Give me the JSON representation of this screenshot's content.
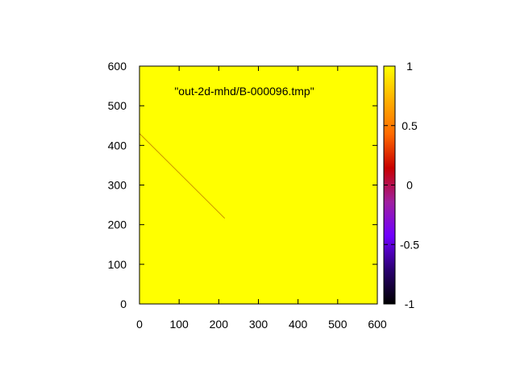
{
  "chart_data": {
    "type": "heatmap",
    "legend_label": "\"out-2d-mhd/B-000096.tmp\"",
    "xlim": [
      0,
      600
    ],
    "ylim": [
      0,
      600
    ],
    "xticks": [
      "0",
      "100",
      "200",
      "300",
      "400",
      "500",
      "600"
    ],
    "yticks": [
      "0",
      "100",
      "200",
      "300",
      "400",
      "500",
      "600"
    ],
    "background_value": 1,
    "background_color": "#ffff00",
    "features": [
      {
        "kind": "line",
        "from": [
          0,
          430
        ],
        "to": [
          215,
          216
        ],
        "value": 0.85
      }
    ],
    "colorbar": {
      "range": [
        -1,
        1
      ],
      "ticks": [
        "1",
        "0.5",
        "0",
        "-0.5",
        "-1"
      ],
      "tick_values": [
        1,
        0.5,
        0,
        -0.5,
        -1
      ],
      "colormap": "gnuplot",
      "stops": [
        "#000000",
        "#2a0070",
        "#7000ff",
        "#a020a0",
        "#c80000",
        "#ff6a00",
        "#ffb000",
        "#ffff00"
      ]
    }
  }
}
